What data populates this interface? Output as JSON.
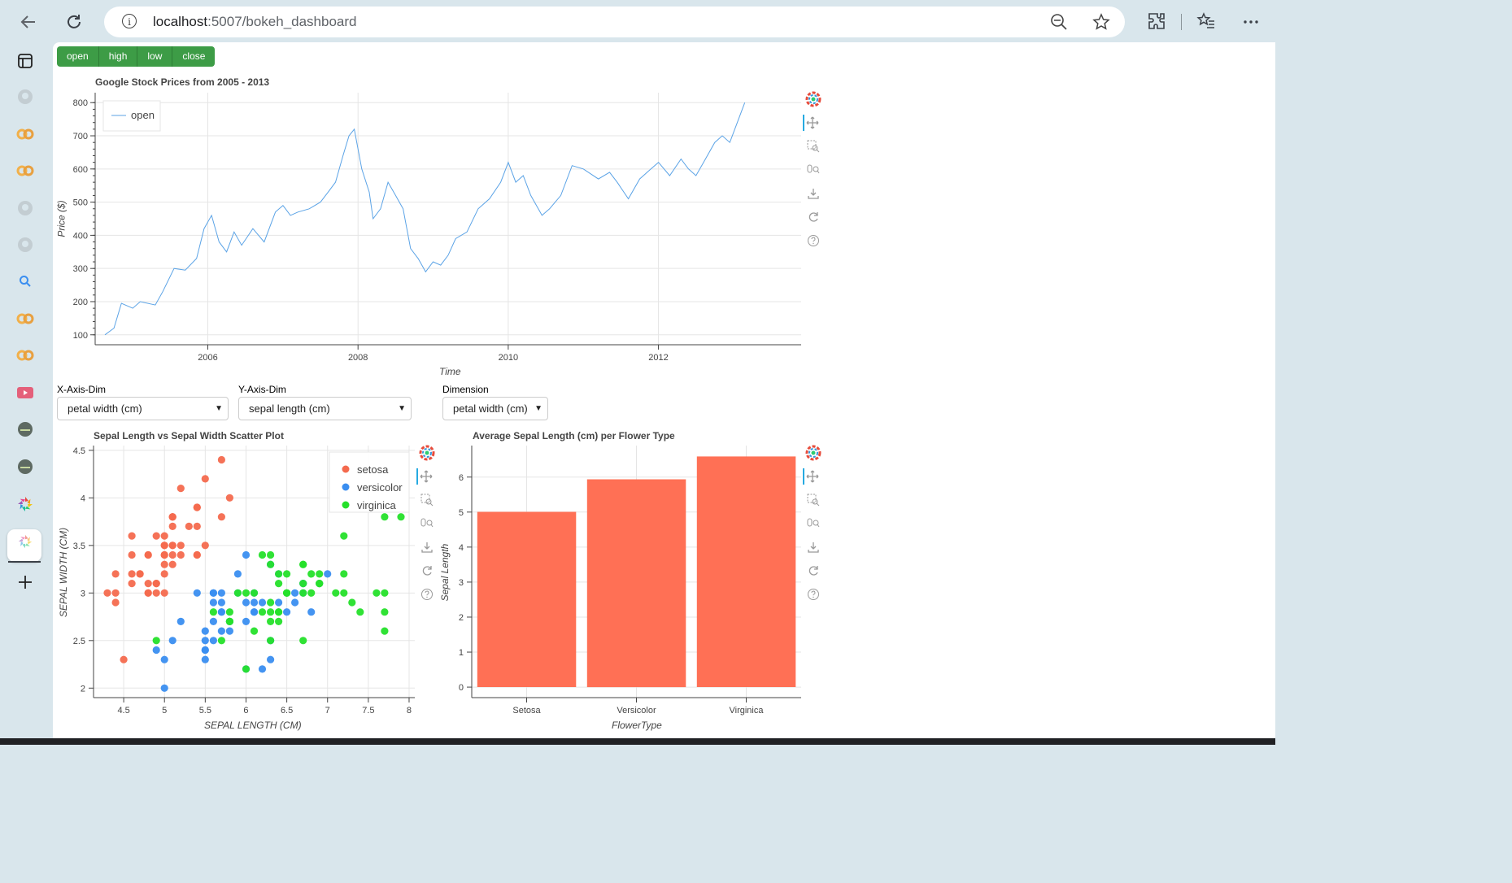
{
  "browser": {
    "url_host": "localhost",
    "url_path": ":5007/bokeh_dashboard"
  },
  "buttons": [
    "open",
    "high",
    "low",
    "close"
  ],
  "stock_plot": {
    "title": "Google Stock Prices from 2005 - 2013",
    "legend": "open"
  },
  "selectors": {
    "x_label": "X-Axis-Dim",
    "x_value": "petal width (cm)",
    "y_label": "Y-Axis-Dim",
    "y_value": "sepal length (cm)",
    "dim_label": "Dimension",
    "dim_value": "petal width (cm)"
  },
  "scatter_plot": {
    "title": "Sepal Length vs Sepal Width Scatter Plot"
  },
  "bar_plot": {
    "title": "Average Sepal Length (cm) per Flower Type"
  },
  "colors": {
    "line": "#5ba3e6",
    "setosa": "#f46a4e",
    "versicolor": "#3a8ef0",
    "virginica": "#25e02a",
    "bar": "#ff7055",
    "button": "#3d9c46"
  },
  "chart_data": [
    {
      "type": "line",
      "title": "Google Stock Prices from 2005 - 2013",
      "xlabel": "Time",
      "ylabel": "Price ($)",
      "xlim": [
        2004.5,
        2013.9
      ],
      "ylim": [
        70,
        830
      ],
      "x_ticks": [
        "2006",
        "2008",
        "2010",
        "2012"
      ],
      "y_ticks": [
        "100",
        "200",
        "300",
        "400",
        "500",
        "600",
        "700",
        "800"
      ],
      "series": [
        {
          "name": "open",
          "x": [
            2004.63,
            2004.75,
            2004.85,
            2005.0,
            2005.1,
            2005.3,
            2005.4,
            2005.55,
            2005.7,
            2005.85,
            2005.95,
            2006.05,
            2006.15,
            2006.25,
            2006.35,
            2006.45,
            2006.6,
            2006.75,
            2006.9,
            2007.0,
            2007.1,
            2007.2,
            2007.35,
            2007.5,
            2007.6,
            2007.7,
            2007.8,
            2007.88,
            2007.95,
            2008.05,
            2008.15,
            2008.2,
            2008.3,
            2008.4,
            2008.5,
            2008.6,
            2008.7,
            2008.8,
            2008.9,
            2009.0,
            2009.1,
            2009.2,
            2009.3,
            2009.45,
            2009.6,
            2009.75,
            2009.9,
            2010.0,
            2010.1,
            2010.2,
            2010.3,
            2010.45,
            2010.55,
            2010.7,
            2010.85,
            2011.0,
            2011.2,
            2011.35,
            2011.45,
            2011.6,
            2011.75,
            2011.9,
            2012.0,
            2012.15,
            2012.3,
            2012.4,
            2012.5,
            2012.6,
            2012.75,
            2012.85,
            2012.95,
            2013.05,
            2013.15
          ],
          "y": [
            100,
            120,
            195,
            180,
            200,
            190,
            230,
            300,
            295,
            330,
            420,
            460,
            380,
            350,
            410,
            370,
            420,
            380,
            470,
            490,
            460,
            470,
            480,
            500,
            530,
            560,
            640,
            700,
            720,
            600,
            530,
            450,
            480,
            560,
            520,
            480,
            360,
            330,
            290,
            320,
            310,
            340,
            390,
            410,
            480,
            510,
            560,
            620,
            560,
            580,
            520,
            460,
            480,
            520,
            610,
            600,
            570,
            590,
            560,
            510,
            570,
            600,
            620,
            580,
            630,
            600,
            580,
            620,
            680,
            700,
            680,
            740,
            800
          ]
        }
      ]
    },
    {
      "type": "scatter",
      "title": "Sepal Length vs Sepal Width Scatter Plot",
      "xlabel": "SEPAL LENGTH (CM)",
      "ylabel": "SEPAL WIDTH (CM)",
      "xlim": [
        4.13,
        8.07
      ],
      "ylim": [
        1.9,
        4.55
      ],
      "x_ticks": [
        "4.5",
        "5",
        "5.5",
        "6",
        "6.5",
        "7",
        "7.5",
        "8"
      ],
      "y_ticks": [
        "2",
        "2.5",
        "3",
        "3.5",
        "4",
        "4.5"
      ],
      "series": [
        {
          "name": "setosa",
          "points": [
            [
              5.1,
              3.5
            ],
            [
              4.9,
              3.0
            ],
            [
              4.7,
              3.2
            ],
            [
              4.6,
              3.1
            ],
            [
              5.0,
              3.6
            ],
            [
              5.4,
              3.9
            ],
            [
              4.6,
              3.4
            ],
            [
              5.0,
              3.4
            ],
            [
              4.4,
              2.9
            ],
            [
              4.9,
              3.1
            ],
            [
              5.4,
              3.7
            ],
            [
              4.8,
              3.4
            ],
            [
              4.8,
              3.0
            ],
            [
              4.3,
              3.0
            ],
            [
              5.8,
              4.0
            ],
            [
              5.7,
              4.4
            ],
            [
              5.4,
              3.9
            ],
            [
              5.1,
              3.5
            ],
            [
              5.7,
              3.8
            ],
            [
              5.1,
              3.8
            ],
            [
              5.4,
              3.4
            ],
            [
              5.1,
              3.7
            ],
            [
              4.6,
              3.6
            ],
            [
              5.1,
              3.3
            ],
            [
              4.8,
              3.4
            ],
            [
              5.0,
              3.0
            ],
            [
              5.0,
              3.4
            ],
            [
              5.2,
              3.5
            ],
            [
              5.2,
              3.4
            ],
            [
              4.7,
              3.2
            ],
            [
              4.8,
              3.1
            ],
            [
              5.4,
              3.4
            ],
            [
              5.2,
              4.1
            ],
            [
              5.5,
              4.2
            ],
            [
              4.9,
              3.1
            ],
            [
              5.0,
              3.2
            ],
            [
              5.5,
              3.5
            ],
            [
              4.9,
              3.6
            ],
            [
              4.4,
              3.0
            ],
            [
              5.1,
              3.4
            ],
            [
              5.0,
              3.5
            ],
            [
              4.5,
              2.3
            ],
            [
              4.4,
              3.2
            ],
            [
              5.0,
              3.5
            ],
            [
              5.1,
              3.8
            ],
            [
              4.8,
              3.0
            ],
            [
              5.1,
              3.8
            ],
            [
              4.6,
              3.2
            ],
            [
              5.3,
              3.7
            ],
            [
              5.0,
              3.3
            ]
          ]
        },
        {
          "name": "versicolor",
          "points": [
            [
              7.0,
              3.2
            ],
            [
              6.4,
              3.2
            ],
            [
              6.9,
              3.1
            ],
            [
              5.5,
              2.3
            ],
            [
              6.5,
              2.8
            ],
            [
              5.7,
              2.8
            ],
            [
              6.3,
              3.3
            ],
            [
              4.9,
              2.4
            ],
            [
              6.6,
              2.9
            ],
            [
              5.2,
              2.7
            ],
            [
              5.0,
              2.0
            ],
            [
              5.9,
              3.0
            ],
            [
              6.0,
              2.2
            ],
            [
              6.1,
              2.9
            ],
            [
              5.6,
              2.9
            ],
            [
              6.7,
              3.1
            ],
            [
              5.6,
              3.0
            ],
            [
              5.8,
              2.7
            ],
            [
              6.2,
              2.2
            ],
            [
              5.6,
              2.5
            ],
            [
              5.9,
              3.2
            ],
            [
              6.1,
              2.8
            ],
            [
              6.3,
              2.5
            ],
            [
              6.1,
              2.8
            ],
            [
              6.4,
              2.9
            ],
            [
              6.6,
              3.0
            ],
            [
              6.8,
              2.8
            ],
            [
              6.7,
              3.0
            ],
            [
              6.0,
              2.9
            ],
            [
              5.7,
              2.6
            ],
            [
              5.5,
              2.4
            ],
            [
              5.5,
              2.4
            ],
            [
              5.8,
              2.7
            ],
            [
              6.0,
              2.7
            ],
            [
              5.4,
              3.0
            ],
            [
              6.0,
              3.4
            ],
            [
              6.7,
              3.1
            ],
            [
              6.3,
              2.3
            ],
            [
              5.6,
              3.0
            ],
            [
              5.5,
              2.5
            ],
            [
              5.5,
              2.6
            ],
            [
              6.1,
              3.0
            ],
            [
              5.8,
              2.6
            ],
            [
              5.0,
              2.3
            ],
            [
              5.6,
              2.7
            ],
            [
              5.7,
              3.0
            ],
            [
              5.7,
              2.9
            ],
            [
              6.2,
              2.9
            ],
            [
              5.1,
              2.5
            ],
            [
              5.7,
              2.8
            ]
          ]
        },
        {
          "name": "virginica",
          "points": [
            [
              6.3,
              3.3
            ],
            [
              5.8,
              2.7
            ],
            [
              7.1,
              3.0
            ],
            [
              6.3,
              2.9
            ],
            [
              6.5,
              3.0
            ],
            [
              7.6,
              3.0
            ],
            [
              4.9,
              2.5
            ],
            [
              7.3,
              2.9
            ],
            [
              6.7,
              2.5
            ],
            [
              7.2,
              3.6
            ],
            [
              6.5,
              3.2
            ],
            [
              6.4,
              2.7
            ],
            [
              6.8,
              3.0
            ],
            [
              5.7,
              2.5
            ],
            [
              5.8,
              2.8
            ],
            [
              6.4,
              3.2
            ],
            [
              6.5,
              3.0
            ],
            [
              7.7,
              3.8
            ],
            [
              7.7,
              2.6
            ],
            [
              6.0,
              2.2
            ],
            [
              6.9,
              3.2
            ],
            [
              5.6,
              2.8
            ],
            [
              7.7,
              2.8
            ],
            [
              6.3,
              2.7
            ],
            [
              6.7,
              3.3
            ],
            [
              7.2,
              3.2
            ],
            [
              6.2,
              2.8
            ],
            [
              6.1,
              3.0
            ],
            [
              6.4,
              2.8
            ],
            [
              7.2,
              3.0
            ],
            [
              7.4,
              2.8
            ],
            [
              7.9,
              3.8
            ],
            [
              6.4,
              2.8
            ],
            [
              6.3,
              2.8
            ],
            [
              6.1,
              2.6
            ],
            [
              7.7,
              3.0
            ],
            [
              6.3,
              3.4
            ],
            [
              6.4,
              3.1
            ],
            [
              6.0,
              3.0
            ],
            [
              6.9,
              3.1
            ],
            [
              6.7,
              3.1
            ],
            [
              6.9,
              3.1
            ],
            [
              5.8,
              2.7
            ],
            [
              6.8,
              3.2
            ],
            [
              6.7,
              3.3
            ],
            [
              6.7,
              3.0
            ],
            [
              6.3,
              2.5
            ],
            [
              6.5,
              3.0
            ],
            [
              6.2,
              3.4
            ],
            [
              5.9,
              3.0
            ]
          ]
        }
      ]
    },
    {
      "type": "bar",
      "title": "Average Sepal Length (cm) per Flower Type",
      "xlabel": "FlowerType",
      "ylabel": "Sepal Length",
      "categories": [
        "Setosa",
        "Versicolor",
        "Virginica"
      ],
      "values": [
        5.006,
        5.936,
        6.588
      ],
      "ylim": [
        -0.3,
        6.9
      ],
      "y_ticks": [
        "0",
        "1",
        "2",
        "3",
        "4",
        "5",
        "6"
      ]
    }
  ]
}
